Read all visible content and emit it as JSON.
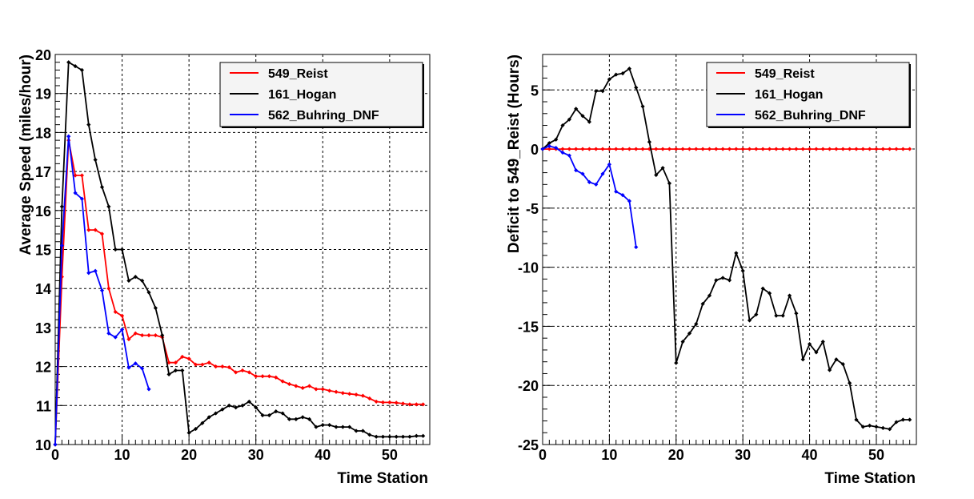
{
  "chart_data": [
    {
      "type": "line",
      "xlabel": "Time Station",
      "ylabel": "Average Speed (miles/hour)",
      "xlim": [
        0,
        56
      ],
      "ylim": [
        10,
        20
      ],
      "x_ticks": [
        0,
        10,
        20,
        30,
        40,
        50
      ],
      "y_ticks": [
        10,
        11,
        12,
        13,
        14,
        15,
        16,
        17,
        18,
        19,
        20
      ],
      "grid": true,
      "legend_position": "top-right",
      "series": [
        {
          "name": "549_Reist",
          "color": "#ff0000",
          "x": [
            0,
            1,
            2,
            3,
            4,
            5,
            6,
            7,
            8,
            9,
            10,
            11,
            12,
            13,
            14,
            15,
            16,
            17,
            18,
            19,
            20,
            21,
            22,
            23,
            24,
            25,
            26,
            27,
            28,
            29,
            30,
            31,
            32,
            33,
            34,
            35,
            36,
            37,
            38,
            39,
            40,
            41,
            42,
            43,
            44,
            45,
            46,
            47,
            48,
            49,
            50,
            51,
            52,
            53,
            54,
            55
          ],
          "values": [
            10.0,
            14.3,
            17.8,
            16.9,
            16.9,
            15.5,
            15.5,
            15.4,
            14.0,
            13.4,
            13.3,
            12.7,
            12.85,
            12.8,
            12.8,
            12.8,
            12.75,
            12.1,
            12.1,
            12.25,
            12.2,
            12.05,
            12.05,
            12.1,
            12.0,
            12.0,
            11.98,
            11.85,
            11.9,
            11.85,
            11.75,
            11.75,
            11.75,
            11.72,
            11.62,
            11.55,
            11.5,
            11.45,
            11.5,
            11.42,
            11.42,
            11.38,
            11.35,
            11.32,
            11.3,
            11.28,
            11.25,
            11.18,
            11.1,
            11.08,
            11.08,
            11.07,
            11.05,
            11.03,
            11.03,
            11.03
          ]
        },
        {
          "name": "161_Hogan",
          "color": "#000000",
          "x": [
            0,
            1,
            2,
            3,
            4,
            5,
            6,
            7,
            8,
            9,
            10,
            11,
            12,
            13,
            14,
            15,
            16,
            17,
            18,
            19,
            20,
            21,
            22,
            23,
            24,
            25,
            26,
            27,
            28,
            29,
            30,
            31,
            32,
            33,
            34,
            35,
            36,
            37,
            38,
            39,
            40,
            41,
            42,
            43,
            44,
            45,
            46,
            47,
            48,
            49,
            50,
            51,
            52,
            53,
            54,
            55
          ],
          "values": [
            10.0,
            16.1,
            19.8,
            19.7,
            19.6,
            18.2,
            17.3,
            16.6,
            16.1,
            15.0,
            15.0,
            14.2,
            14.3,
            14.2,
            13.9,
            13.5,
            12.8,
            11.8,
            11.9,
            11.9,
            10.3,
            10.4,
            10.55,
            10.7,
            10.8,
            10.9,
            11.0,
            10.95,
            11.0,
            11.1,
            10.95,
            10.75,
            10.75,
            10.85,
            10.8,
            10.65,
            10.65,
            10.7,
            10.65,
            10.45,
            10.5,
            10.5,
            10.45,
            10.45,
            10.45,
            10.35,
            10.35,
            10.25,
            10.2,
            10.2,
            10.2,
            10.2,
            10.2,
            10.2,
            10.22,
            10.22
          ]
        },
        {
          "name": "562_Buhring_DNF",
          "color": "#0000ff",
          "x": [
            0,
            1,
            2,
            3,
            4,
            5,
            6,
            7,
            8,
            9,
            10,
            11,
            12,
            13,
            14
          ],
          "values": [
            10.0,
            15.1,
            17.9,
            16.45,
            16.3,
            14.4,
            14.45,
            13.95,
            12.85,
            12.75,
            12.95,
            11.97,
            12.08,
            11.95,
            11.42
          ]
        }
      ]
    },
    {
      "type": "line",
      "xlabel": "Time Station",
      "ylabel": "Deficit to 549_Reist (Hours)",
      "xlim": [
        0,
        56
      ],
      "ylim": [
        -25,
        8
      ],
      "x_ticks": [
        0,
        10,
        20,
        30,
        40,
        50
      ],
      "y_ticks": [
        -25,
        -20,
        -15,
        -10,
        -5,
        0,
        5
      ],
      "grid": true,
      "legend_position": "top-right",
      "series": [
        {
          "name": "549_Reist",
          "color": "#ff0000",
          "x": [
            0,
            1,
            2,
            3,
            4,
            5,
            6,
            7,
            8,
            9,
            10,
            11,
            12,
            13,
            14,
            15,
            16,
            17,
            18,
            19,
            20,
            21,
            22,
            23,
            24,
            25,
            26,
            27,
            28,
            29,
            30,
            31,
            32,
            33,
            34,
            35,
            36,
            37,
            38,
            39,
            40,
            41,
            42,
            43,
            44,
            45,
            46,
            47,
            48,
            49,
            50,
            51,
            52,
            53,
            54,
            55
          ],
          "values": [
            0,
            0,
            0,
            0,
            0,
            0,
            0,
            0,
            0,
            0,
            0,
            0,
            0,
            0,
            0,
            0,
            0,
            0,
            0,
            0,
            0,
            0,
            0,
            0,
            0,
            0,
            0,
            0,
            0,
            0,
            0,
            0,
            0,
            0,
            0,
            0,
            0,
            0,
            0,
            0,
            0,
            0,
            0,
            0,
            0,
            0,
            0,
            0,
            0,
            0,
            0,
            0,
            0,
            0,
            0,
            0
          ]
        },
        {
          "name": "161_Hogan",
          "color": "#000000",
          "x": [
            0,
            1,
            2,
            3,
            4,
            5,
            6,
            7,
            8,
            9,
            10,
            11,
            12,
            13,
            14,
            15,
            16,
            17,
            18,
            19,
            20,
            21,
            22,
            23,
            24,
            25,
            26,
            27,
            28,
            29,
            30,
            31,
            32,
            33,
            34,
            35,
            36,
            37,
            38,
            39,
            40,
            41,
            42,
            43,
            44,
            45,
            46,
            47,
            48,
            49,
            50,
            51,
            52,
            53,
            54,
            55
          ],
          "values": [
            0.0,
            0.5,
            0.8,
            2.0,
            2.5,
            3.4,
            2.8,
            2.3,
            4.9,
            4.9,
            5.9,
            6.3,
            6.4,
            6.8,
            5.2,
            3.6,
            0.6,
            -2.2,
            -1.6,
            -2.9,
            -18.1,
            -16.3,
            -15.6,
            -14.8,
            -13.1,
            -12.4,
            -11.1,
            -10.9,
            -11.1,
            -8.8,
            -10.3,
            -14.5,
            -14.0,
            -11.8,
            -12.2,
            -14.1,
            -14.1,
            -12.4,
            -13.9,
            -17.8,
            -16.5,
            -17.2,
            -16.3,
            -18.7,
            -17.8,
            -18.2,
            -19.8,
            -22.9,
            -23.5,
            -23.4,
            -23.5,
            -23.6,
            -23.7,
            -23.1,
            -22.9,
            -22.9
          ]
        },
        {
          "name": "562_Buhring_DNF",
          "color": "#0000ff",
          "x": [
            0,
            1,
            2,
            3,
            4,
            5,
            6,
            7,
            8,
            9,
            10,
            11,
            12,
            13,
            14
          ],
          "values": [
            0.0,
            0.25,
            0.1,
            -0.3,
            -0.55,
            -1.8,
            -2.1,
            -2.8,
            -3.0,
            -2.1,
            -1.3,
            -3.6,
            -3.9,
            -4.4,
            -8.3
          ]
        }
      ]
    }
  ]
}
